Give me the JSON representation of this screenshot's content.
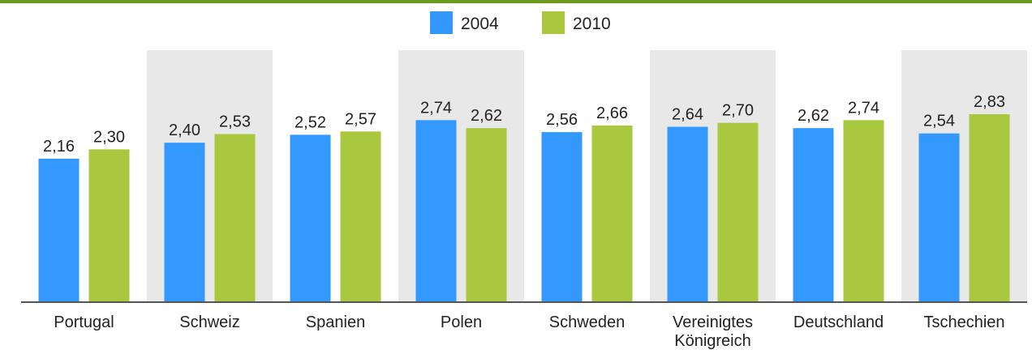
{
  "chart_data": {
    "type": "bar",
    "categories": [
      [
        "Portugal"
      ],
      [
        "Schweiz"
      ],
      [
        "Spanien"
      ],
      [
        "Polen"
      ],
      [
        "Schweden"
      ],
      [
        "Vereinigtes",
        "Königreich"
      ],
      [
        "Deutschland"
      ],
      [
        "Tschechien"
      ]
    ],
    "series": [
      {
        "name": "2004",
        "values": [
          2.16,
          2.4,
          2.52,
          2.74,
          2.56,
          2.64,
          2.62,
          2.54
        ],
        "labels": [
          "2,16",
          "2,40",
          "2,52",
          "2,74",
          "2,56",
          "2,64",
          "2,62",
          "2,54"
        ]
      },
      {
        "name": "2010",
        "values": [
          2.3,
          2.53,
          2.57,
          2.62,
          2.66,
          2.7,
          2.74,
          2.83
        ],
        "labels": [
          "2,30",
          "2,53",
          "2,57",
          "2,62",
          "2,66",
          "2,70",
          "2,74",
          "2,83"
        ]
      }
    ],
    "ylim": [
      0,
      3.15
    ],
    "legend": "top",
    "colors": {
      "2004": "#3399ff",
      "2010": "#a9c73f",
      "band": "#e8e8e8",
      "frame": "#6b9a1f"
    }
  }
}
